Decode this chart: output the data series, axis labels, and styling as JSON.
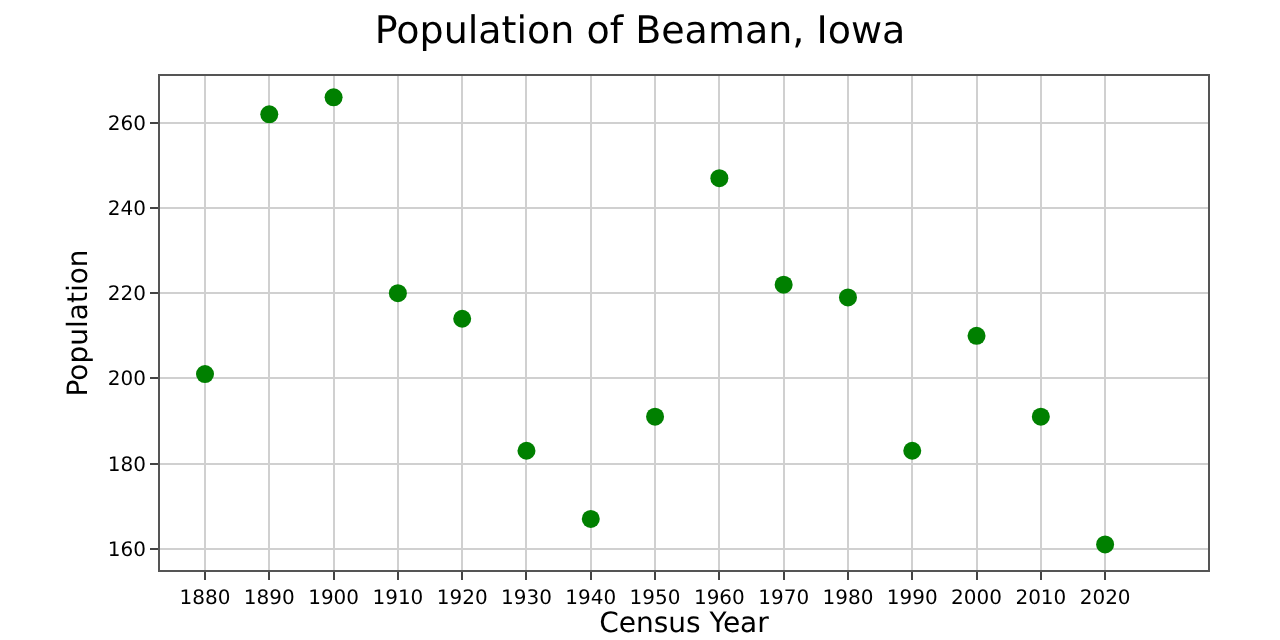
{
  "chart_data": {
    "type": "scatter",
    "title": "Population of Beaman, Iowa",
    "xlabel": "Census Year",
    "ylabel": "Population",
    "x": [
      1880,
      1890,
      1900,
      1910,
      1920,
      1930,
      1940,
      1950,
      1960,
      1970,
      1980,
      1990,
      2000,
      2010,
      2020
    ],
    "series": [
      {
        "color": "#008000",
        "values": [
          201,
          262,
          266,
          220,
          214,
          183,
          167,
          191,
          247,
          222,
          219,
          183,
          210,
          191,
          161
        ]
      }
    ],
    "xlim": [
      1873,
      2036
    ],
    "xticks": [
      1880,
      1890,
      1900,
      1910,
      1920,
      1930,
      1940,
      1950,
      1960,
      1970,
      1980,
      1990,
      2000,
      2010,
      2020
    ],
    "ylim": [
      155,
      271
    ],
    "yticks": [
      160,
      180,
      200,
      220,
      240,
      260
    ],
    "grid": true,
    "marker": "circle"
  }
}
